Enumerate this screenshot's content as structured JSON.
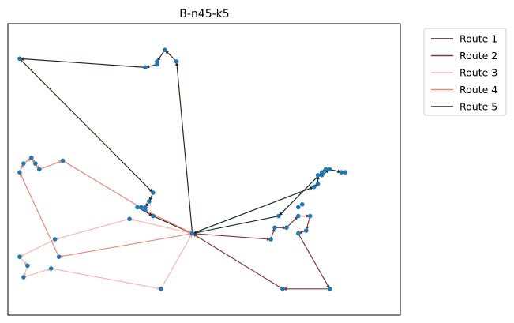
{
  "chart_data": {
    "type": "line",
    "title": "B-n45-k5",
    "xlabel": "",
    "ylabel": "",
    "xlim": [
      0,
      100
    ],
    "ylim": [
      0,
      100
    ],
    "grid": false,
    "axis_ticks": false,
    "legend_placement": "outside-top-right",
    "depot": [
      47,
      28
    ],
    "series": [
      {
        "name": "Route 1",
        "color": "#3b1f1b",
        "points": [
          [
            47,
            28
          ],
          [
            43,
            87
          ],
          [
            40,
            91
          ],
          [
            38,
            87
          ],
          [
            38,
            86
          ],
          [
            35,
            85
          ],
          [
            3,
            88
          ],
          [
            37,
            42
          ],
          [
            36,
            39
          ],
          [
            35,
            37
          ],
          [
            34,
            37
          ],
          [
            33,
            37
          ],
          [
            37,
            34
          ],
          [
            47,
            28
          ]
        ]
      },
      {
        "name": "Route 2",
        "color": "#7a3a33",
        "points": [
          [
            47,
            28
          ],
          [
            67,
            26
          ],
          [
            68,
            30
          ],
          [
            71,
            30
          ],
          [
            74,
            34
          ],
          [
            77,
            34
          ],
          [
            76,
            29
          ],
          [
            74,
            28
          ],
          [
            82,
            9
          ],
          [
            70,
            9
          ],
          [
            47,
            28
          ]
        ]
      },
      {
        "name": "Route 3",
        "color": "#f4b8b0",
        "points": [
          [
            47,
            28
          ],
          [
            31,
            33
          ],
          [
            12,
            26
          ],
          [
            3,
            20
          ],
          [
            5,
            17
          ],
          [
            4,
            13
          ],
          [
            11,
            16
          ],
          [
            39,
            9
          ],
          [
            47,
            28
          ]
        ]
      },
      {
        "name": "Route 4",
        "color": "#e8877a",
        "points": [
          [
            47,
            28
          ],
          [
            13,
            20
          ],
          [
            3,
            49
          ],
          [
            4,
            52
          ],
          [
            6,
            54
          ],
          [
            7,
            52
          ],
          [
            8,
            50
          ],
          [
            14,
            53
          ],
          [
            35,
            36
          ],
          [
            47,
            28
          ]
        ]
      },
      {
        "name": "Route 5",
        "color": "#0f2e26",
        "points": [
          [
            47,
            28
          ],
          [
            78,
            44
          ],
          [
            79,
            45
          ],
          [
            79,
            48
          ],
          [
            80,
            48
          ],
          [
            82,
            50
          ],
          [
            85,
            49
          ],
          [
            86,
            49
          ],
          [
            81,
            50
          ],
          [
            80,
            49
          ],
          [
            69,
            34
          ],
          [
            47,
            28
          ]
        ]
      }
    ],
    "extra_nodes": [
      [
        75,
        38
      ],
      [
        74,
        37
      ]
    ]
  }
}
